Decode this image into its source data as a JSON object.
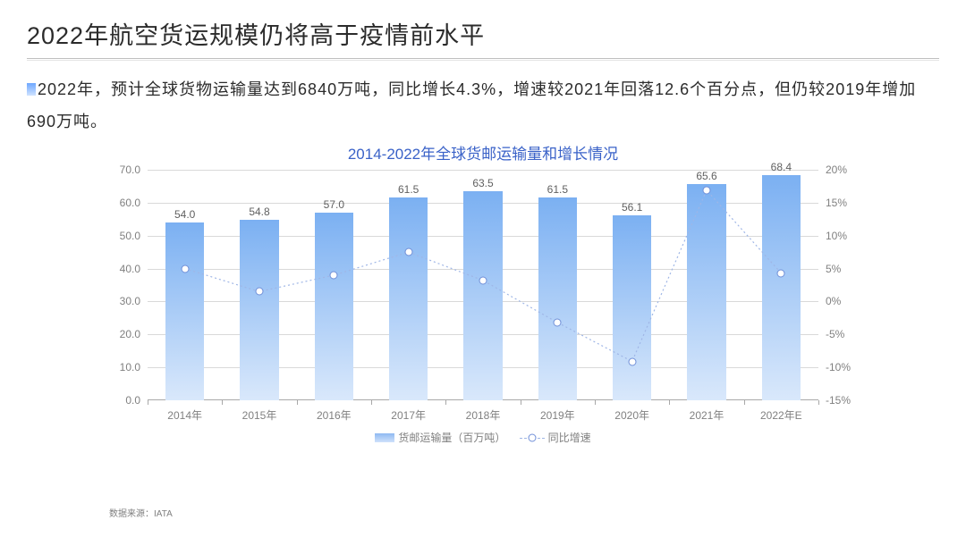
{
  "title": "2022年航空货运规模仍将高于疫情前水平",
  "body_text": "2022年，预计全球货物运输量达到6840万吨，同比增长4.3%，增速较2021年回落12.6个百分点，但仍较2019年增加690万吨。",
  "source_note": "数据来源：IATA",
  "chart": {
    "type": "bar+line",
    "title": "2014-2022年全球货邮运输量和增长情况",
    "title_color": "#3a62c8",
    "title_fontsize": 17,
    "plot_background": "#ffffff",
    "grid_color": "#d9d9d9",
    "axis_label_color": "#808080",
    "axis_label_fontsize": 12,
    "bar_series": {
      "name": "货邮运输量（百万吨）",
      "bar_width_ratio": 0.52,
      "gradient_top": "#7bb0f2",
      "gradient_bottom": "#d9e8fb",
      "label_color": "#606060",
      "label_fontsize": 12
    },
    "line_series": {
      "name": "同比增速",
      "line_color": "#9fb6e6",
      "marker_border": "#6f8fd8",
      "marker_fill": "#ffffff",
      "marker_size": 9,
      "dash": "2,3"
    },
    "categories": [
      "2014年",
      "2015年",
      "2016年",
      "2017年",
      "2018年",
      "2019年",
      "2020年",
      "2021年",
      "2022年E"
    ],
    "bar_values": [
      54.0,
      54.8,
      57.0,
      61.5,
      63.5,
      61.5,
      56.1,
      65.6,
      68.4
    ],
    "bar_labels": [
      "54.0",
      "54.8",
      "57.0",
      "61.5",
      "63.5",
      "61.5",
      "56.1",
      "65.6",
      "68.4"
    ],
    "line_values_pct": [
      5.0,
      1.5,
      4.0,
      7.5,
      3.2,
      -3.2,
      -9.1,
      16.9,
      4.3
    ],
    "y_left": {
      "min": 0,
      "max": 70,
      "step": 10,
      "format": "fixed1"
    },
    "y_right": {
      "min": -15,
      "max": 20,
      "step": 5,
      "format": "pct"
    },
    "legend": {
      "bar_label": "货邮运输量（百万吨）",
      "line_label": "同比增速"
    }
  }
}
